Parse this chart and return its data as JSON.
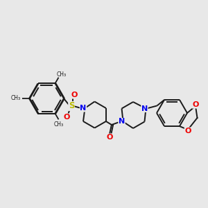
{
  "bg_color": "#e8e8e8",
  "bond_color": "#1a1a1a",
  "bond_width": 1.4,
  "N_color": "#0000ee",
  "O_color": "#ee0000",
  "S_color": "#bbbb00",
  "figsize": [
    3.0,
    3.0
  ],
  "dpi": 100,
  "xlim": [
    0,
    300
  ],
  "ylim": [
    0,
    300
  ]
}
